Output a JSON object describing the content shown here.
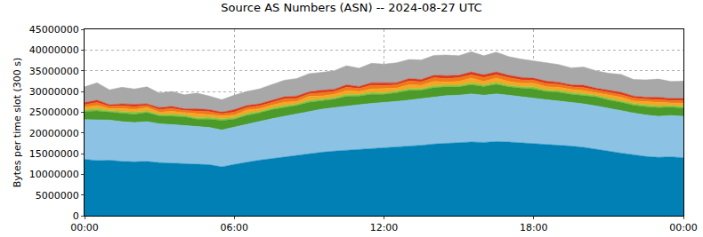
{
  "chart_data": {
    "type": "area",
    "stacked": true,
    "grid": true,
    "title": "Source AS Numbers (ASN) -- 2024-08-27 UTC",
    "y_label": "Bytes per time slot (300 s)",
    "x": [
      0,
      0.5,
      1,
      1.5,
      2,
      2.5,
      3,
      3.5,
      4,
      4.5,
      5,
      5.5,
      6,
      6.5,
      7,
      7.5,
      8,
      8.5,
      9,
      9.5,
      10,
      10.5,
      11,
      11.5,
      12,
      12.5,
      13,
      13.5,
      14,
      14.5,
      15,
      15.5,
      16,
      16.5,
      17,
      17.5,
      18,
      18.5,
      19,
      19.5,
      20,
      20.5,
      21,
      21.5,
      22,
      22.5,
      23,
      23.5,
      24
    ],
    "xlim": [
      0,
      24
    ],
    "xticks": [
      {
        "value": 0,
        "label": "00:00"
      },
      {
        "value": 6,
        "label": "06:00"
      },
      {
        "value": 12,
        "label": "12:00"
      },
      {
        "value": 18,
        "label": "18:00"
      },
      {
        "value": 24,
        "label": "00:00"
      }
    ],
    "ylim": [
      0,
      45000000
    ],
    "yticks": [
      0,
      5000000,
      10000000,
      15000000,
      20000000,
      25000000,
      30000000,
      35000000,
      40000000,
      45000000
    ],
    "series": [
      {
        "color": "#0080b4",
        "values": [
          13600000,
          13300000,
          13400000,
          13100000,
          13000000,
          13100000,
          12800000,
          12700000,
          12600000,
          12400000,
          12300000,
          11800000,
          12400000,
          12900000,
          13400000,
          13800000,
          14200000,
          14600000,
          15000000,
          15300000,
          15600000,
          15800000,
          16000000,
          16200000,
          16300000,
          16500000,
          16700000,
          17000000,
          17300000,
          17500000,
          17600000,
          17800000,
          17700000,
          17900000,
          17800000,
          17600000,
          17500000,
          17200000,
          17000000,
          16800000,
          16500000,
          16100000,
          15600000,
          15100000,
          14700000,
          14300000,
          14100000,
          14200000,
          14000000
        ]
      },
      {
        "color": "#8cc3e4",
        "values": [
          9600000,
          9800000,
          9700000,
          9600000,
          9500000,
          9600000,
          9400000,
          9300000,
          9200000,
          9100000,
          9000000,
          8900000,
          9000000,
          9200000,
          9400000,
          9600000,
          9800000,
          10000000,
          10200000,
          10400000,
          10500000,
          10700000,
          10800000,
          10900000,
          11000000,
          11100000,
          11200000,
          11300000,
          11400000,
          11500000,
          11500000,
          11600000,
          11400000,
          11500000,
          11300000,
          11100000,
          10900000,
          10800000,
          10700000,
          10600000,
          10500000,
          10400000,
          10300000,
          10200000,
          10100000,
          10000000,
          9900000,
          10000000,
          10000000
        ]
      },
      {
        "color": "#4c9a2a",
        "values": [
          2000000,
          2200000,
          1900000,
          2100000,
          2000000,
          2200000,
          1900000,
          2000000,
          2100000,
          1800000,
          2000000,
          2300000,
          1900000,
          2100000,
          2000000,
          2200000,
          2100000,
          2000000,
          2200000,
          2100000,
          2000000,
          2300000,
          2100000,
          2200000,
          2000000,
          2100000,
          2300000,
          2000000,
          2200000,
          2100000,
          2000000,
          2200000,
          2100000,
          2300000,
          2000000,
          2100000,
          2200000,
          2000000,
          2100000,
          1900000,
          2000000,
          2200000,
          2000000,
          2100000,
          1900000,
          2000000,
          2100000,
          2000000,
          2000000
        ]
      },
      {
        "color": "#8cc63f",
        "values": [
          400000,
          500000,
          400000,
          400000,
          500000,
          400000,
          400000,
          500000,
          400000,
          400000,
          500000,
          400000,
          400000,
          500000,
          400000,
          400000,
          500000,
          400000,
          500000,
          400000,
          400000,
          500000,
          400000,
          500000,
          400000,
          400000,
          500000,
          400000,
          500000,
          400000,
          400000,
          500000,
          400000,
          500000,
          400000,
          400000,
          500000,
          400000,
          400000,
          500000,
          400000,
          400000,
          500000,
          400000,
          400000,
          500000,
          400000,
          400000,
          400000
        ]
      },
      {
        "color": "#f5a623",
        "values": [
          600000,
          800000,
          500000,
          700000,
          600000,
          800000,
          500000,
          700000,
          600000,
          900000,
          500000,
          700000,
          600000,
          800000,
          600000,
          700000,
          800000,
          600000,
          900000,
          700000,
          800000,
          900000,
          700000,
          800000,
          1000000,
          700000,
          900000,
          800000,
          1000000,
          800000,
          900000,
          1100000,
          800000,
          1000000,
          900000,
          800000,
          900000,
          700000,
          800000,
          700000,
          800000,
          600000,
          700000,
          800000,
          600000,
          700000,
          800000,
          600000,
          700000
        ]
      },
      {
        "color": "#f07818",
        "values": [
          600000,
          700000,
          500000,
          600000,
          700000,
          500000,
          600000,
          700000,
          500000,
          600000,
          800000,
          500000,
          700000,
          600000,
          700000,
          600000,
          800000,
          700000,
          600000,
          800000,
          700000,
          800000,
          700000,
          900000,
          700000,
          800000,
          900000,
          800000,
          900000,
          800000,
          900000,
          800000,
          1000000,
          800000,
          900000,
          800000,
          700000,
          800000,
          700000,
          600000,
          700000,
          600000,
          700000,
          600000,
          700000,
          600000,
          700000,
          600000,
          700000
        ]
      },
      {
        "color": "#d9381e",
        "values": [
          500000,
          600000,
          400000,
          500000,
          600000,
          400000,
          500000,
          500000,
          400000,
          600000,
          500000,
          400000,
          600000,
          500000,
          500000,
          600000,
          500000,
          600000,
          500000,
          600000,
          500000,
          600000,
          500000,
          600000,
          700000,
          500000,
          600000,
          600000,
          600000,
          700000,
          600000,
          700000,
          600000,
          700000,
          600000,
          600000,
          500000,
          600000,
          500000,
          500000,
          600000,
          500000,
          500000,
          600000,
          500000,
          500000,
          600000,
          500000,
          500000
        ]
      },
      {
        "color": "#a8a8a8",
        "values": [
          3800000,
          4200000,
          3600000,
          4000000,
          3700000,
          4100000,
          3500000,
          3600000,
          3400000,
          3800000,
          3300000,
          3000000,
          3500000,
          3400000,
          3600000,
          3800000,
          4000000,
          4200000,
          4400000,
          4300000,
          4500000,
          4600000,
          4400000,
          4700000,
          4500000,
          4800000,
          4600000,
          4700000,
          4800000,
          5000000,
          4700000,
          4900000,
          4600000,
          4800000,
          4500000,
          4400000,
          4200000,
          4500000,
          4300000,
          4100000,
          4400000,
          4200000,
          4100000,
          4300000,
          4000000,
          4200000,
          4400000,
          4100000,
          4200000
        ]
      }
    ]
  }
}
